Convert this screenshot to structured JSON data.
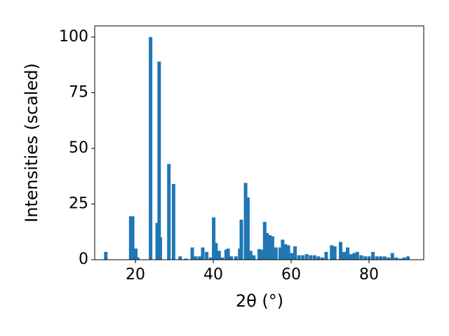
{
  "chart_data": {
    "type": "bar",
    "xlabel": "2θ (°)",
    "ylabel": "Intensities (scaled)",
    "color": "#1f77b4",
    "x": [
      12.4,
      18.8,
      19.3,
      20.1,
      20.6,
      23.9,
      25.6,
      26.1,
      26.4,
      28.6,
      29.8,
      31.5,
      33,
      34.6,
      35.5,
      36.5,
      37.3,
      38.3,
      39.3,
      40.1,
      40.7,
      41.5,
      42.3,
      43.3,
      43.8,
      44.6,
      45.8,
      46.8,
      47.2,
      48.3,
      48.9,
      49.6,
      50.4,
      51.8,
      52.5,
      53.2,
      53.8,
      54.5,
      55.2,
      56.1,
      57.2,
      57.8,
      58.5,
      59.3,
      60.2,
      61,
      62,
      63,
      64,
      65,
      66,
      67,
      68,
      69,
      70.4,
      71.2,
      72.7,
      73.6,
      74.5,
      75.4,
      76.2,
      77,
      78,
      79,
      80,
      81,
      82,
      83,
      84,
      85,
      86,
      87,
      88,
      89,
      90
    ],
    "values": [
      3.5,
      19.5,
      19.5,
      5,
      1,
      100,
      16.5,
      89,
      10,
      43,
      34,
      1.5,
      0.5,
      5.5,
      1.5,
      1.5,
      5.5,
      3.5,
      1,
      19,
      7.5,
      4,
      1,
      4.5,
      5,
      1.5,
      1.5,
      5,
      18,
      34.5,
      28,
      4,
      2,
      4.8,
      4.5,
      17,
      12,
      11,
      10.5,
      5.5,
      5.5,
      9,
      7,
      6.5,
      3,
      6,
      2,
      2,
      2.5,
      2,
      2,
      1.5,
      1,
      3.5,
      6.5,
      6,
      8,
      3.5,
      5.5,
      2.5,
      3,
      3.5,
      2,
      1.5,
      1.5,
      3.5,
      1.5,
      1.5,
      1.5,
      1,
      3,
      1,
      0.5,
      1,
      1.5
    ],
    "xlim": [
      9.55,
      94.05
    ],
    "ylim": [
      0,
      105
    ],
    "xticks": [
      20,
      40,
      60,
      80
    ],
    "yticks": [
      0,
      25,
      50,
      75,
      100
    ]
  }
}
